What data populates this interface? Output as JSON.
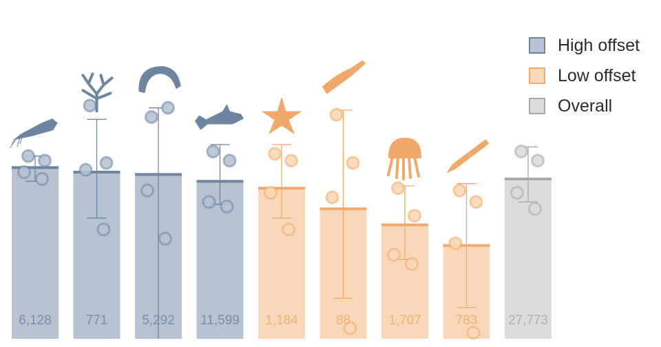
{
  "chart_data": {
    "type": "bar",
    "title": "",
    "xlabel": "",
    "ylabel": "",
    "ylim": [
      0,
      1
    ],
    "grid": false,
    "legend_position": "top-right",
    "categories": [
      "squid",
      "coral",
      "amphipod",
      "shark",
      "sea star",
      "sea pen",
      "jellyfish",
      "sea cucumber",
      "overall"
    ],
    "group": [
      "High offset",
      "High offset",
      "High offset",
      "High offset",
      "Low offset",
      "Low offset",
      "Low offset",
      "Low offset",
      "Overall"
    ],
    "values": [
      0.78,
      0.76,
      0.75,
      0.72,
      0.69,
      0.6,
      0.53,
      0.44,
      0.73
    ],
    "error_low": [
      0.72,
      0.56,
      null,
      0.62,
      0.56,
      0.21,
      0.38,
      0.17,
      0.63
    ],
    "error_high": [
      0.83,
      0.99,
      1.04,
      0.88,
      0.88,
      1.03,
      0.7,
      0.71,
      0.87
    ],
    "counts": [
      "6,128",
      "771",
      "5,292",
      "11,599",
      "1,184",
      "88",
      "1,707",
      "783",
      "27,773"
    ],
    "points": [
      [
        0.83,
        0.81,
        0.76,
        0.73
      ],
      [
        1.05,
        0.8,
        0.77,
        0.51
      ],
      [
        1.0,
        1.04,
        0.68,
        0.47
      ],
      [
        0.85,
        0.81,
        0.63,
        0.61
      ],
      [
        0.84,
        0.81,
        0.67,
        0.51
      ],
      [
        1.01,
        0.8,
        0.65,
        0.08
      ],
      [
        0.69,
        0.57,
        0.4,
        0.36
      ],
      [
        0.68,
        0.63,
        0.45,
        0.06
      ],
      [
        0.85,
        0.81,
        0.67,
        0.6
      ]
    ],
    "icons": [
      "squid-icon",
      "coral-icon",
      "amphipod-icon",
      "shark-icon",
      "sea-star-icon",
      "sea-pen-icon",
      "jellyfish-icon",
      "sea-cucumber-icon",
      null
    ],
    "legend": [
      "High offset",
      "Low offset",
      "Overall"
    ],
    "colors": {
      "High offset": {
        "fill": "#b7c3d1",
        "line": "#6e85a0"
      },
      "Low offset": {
        "fill": "#f9d8b9",
        "line": "#f0a96a"
      },
      "Overall": {
        "fill": "#dcdcdc",
        "line": "#a8a8a8"
      }
    }
  },
  "legend": {
    "high": "High offset",
    "low": "Low offset",
    "overall": "Overall"
  }
}
